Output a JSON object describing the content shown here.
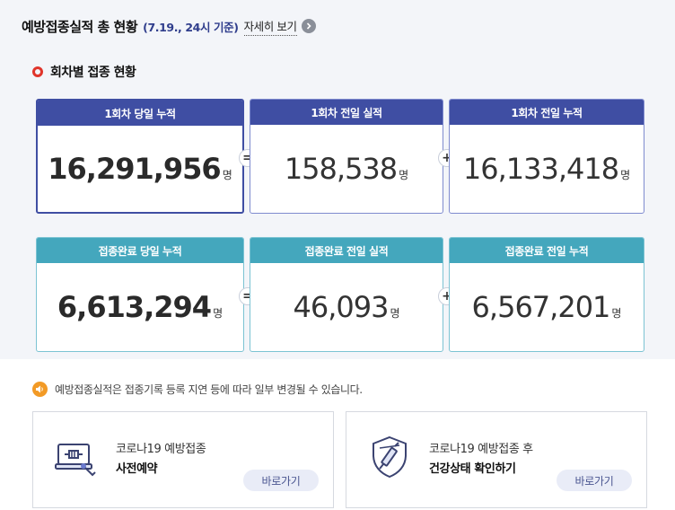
{
  "header": {
    "title": "예방접종실적 총 현황",
    "date": "(7.19., 24시 기준)",
    "more_label": "자세히 보기"
  },
  "section_title": "회차별 접종 현황",
  "dose1": {
    "today_total": {
      "label": "1회차 당일 누적",
      "value": "16,291,956",
      "unit": "명"
    },
    "prev_day": {
      "label": "1회차 전일 실적",
      "value": "158,538",
      "unit": "명"
    },
    "prev_total": {
      "label": "1회차 전일 누적",
      "value": "16,133,418",
      "unit": "명"
    }
  },
  "complete": {
    "today_total": {
      "label": "접종완료 당일 누적",
      "value": "6,613,294",
      "unit": "명"
    },
    "prev_day": {
      "label": "접종완료 전일 실적",
      "value": "46,093",
      "unit": "명"
    },
    "prev_total": {
      "label": "접종완료 전일 누적",
      "value": "6,567,201",
      "unit": "명"
    }
  },
  "operators": {
    "equals": "=",
    "plus": "+"
  },
  "notice": "예방접종실적은 접종기록 등록 지연 등에 따라 일부 변경될 수 있습니다.",
  "links": [
    {
      "line1": "코로나19 예방접종",
      "line2": "사전예약",
      "button": "바로가기",
      "icon": "reservation-laptop-syringe-icon"
    },
    {
      "line1": "코로나19 예방접종 후",
      "line2": "건강상태 확인하기",
      "button": "바로가기",
      "icon": "shield-syringe-icon"
    }
  ],
  "colors": {
    "dose1_header": "#3f4ea3",
    "complete_header": "#44a7bd",
    "accent_red": "#e0352b",
    "notice_orange": "#f29a26"
  }
}
